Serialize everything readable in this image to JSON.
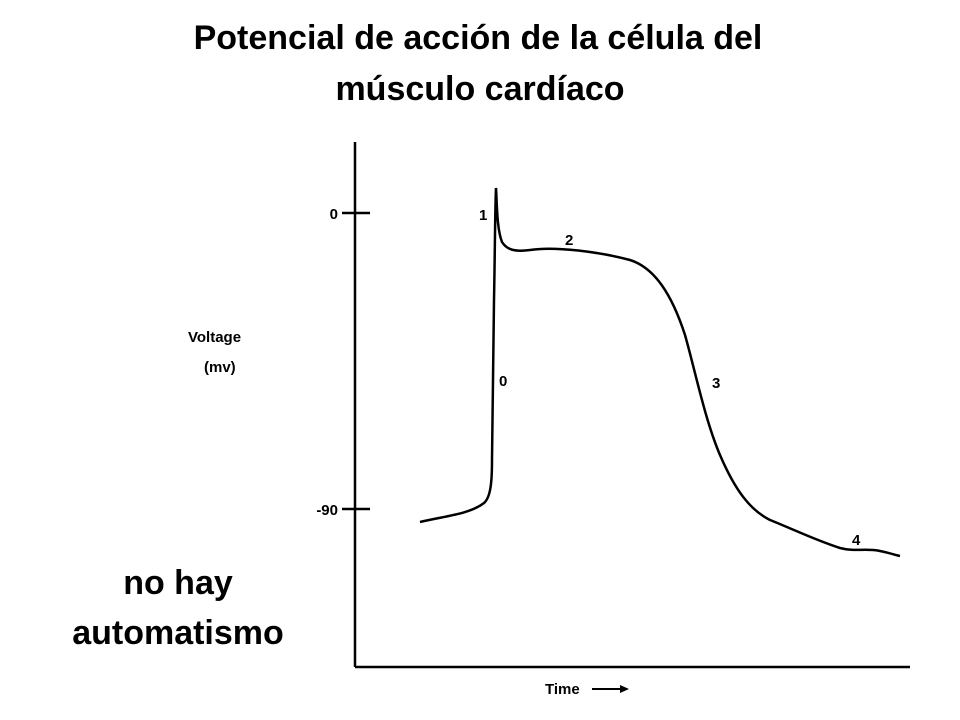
{
  "title_lines": [
    "Potencial de acción de la célula del",
    "músculo cardíaco"
  ],
  "y_axis": {
    "label_lines": [
      "Voltage",
      "(mv)"
    ],
    "ticks": [
      "0",
      "-90"
    ]
  },
  "x_axis": {
    "label": "Time"
  },
  "phases": [
    "0",
    "1",
    "2",
    "3",
    "4"
  ],
  "note_lines": [
    "no hay",
    "automatismo"
  ]
}
